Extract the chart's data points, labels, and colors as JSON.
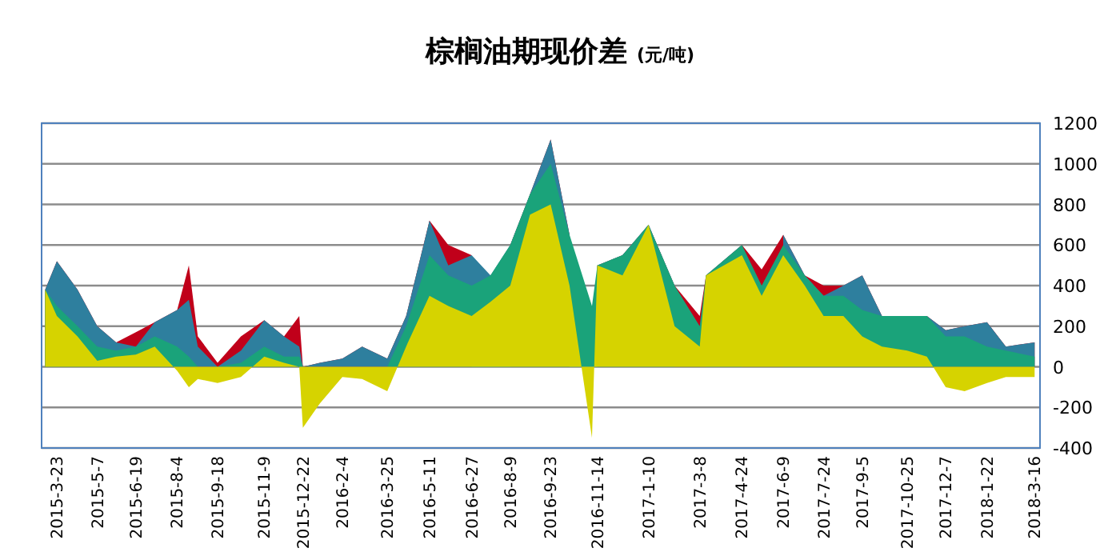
{
  "chart_data": {
    "type": "area",
    "title": "棕榈油期现价差",
    "subtitle": "(元/吨)",
    "x": [
      "2015-03-10",
      "2015-03-23",
      "2015-04-15",
      "2015-05-07",
      "2015-05-28",
      "2015-06-19",
      "2015-07-10",
      "2015-08-04",
      "2015-08-17",
      "2015-08-27",
      "2015-09-18",
      "2015-10-14",
      "2015-11-09",
      "2015-12-01",
      "2015-12-18",
      "2015-12-22",
      "2016-01-10",
      "2016-02-04",
      "2016-02-26",
      "2016-03-25",
      "2016-04-15",
      "2016-05-11",
      "2016-06-01",
      "2016-06-27",
      "2016-07-18",
      "2016-08-09",
      "2016-08-31",
      "2016-09-23",
      "2016-10-14",
      "2016-11-08",
      "2016-11-14",
      "2016-12-12",
      "2017-01-10",
      "2017-02-08",
      "2017-03-08",
      "2017-03-15",
      "2017-04-24",
      "2017-05-16",
      "2017-06-09",
      "2017-07-03",
      "2017-07-24",
      "2017-08-15",
      "2017-09-05",
      "2017-09-27",
      "2017-10-25",
      "2017-11-16",
      "2017-12-07",
      "2017-12-28",
      "2018-01-22",
      "2018-02-12",
      "2018-03-16"
    ],
    "series": [
      {
        "color": "#c0001a",
        "values": [
          380,
          520,
          380,
          200,
          120,
          170,
          220,
          280,
          500,
          150,
          20,
          150,
          230,
          150,
          250,
          0,
          20,
          40,
          100,
          40,
          250,
          720,
          600,
          550,
          null,
          600,
          850,
          1120,
          650,
          null,
          500,
          550,
          700,
          400,
          250,
          450,
          600,
          480,
          650,
          450,
          400,
          400,
          450,
          250,
          250,
          250,
          180,
          200,
          220,
          100,
          120
        ]
      },
      {
        "color": "#2e7f9e",
        "values": [
          380,
          520,
          380,
          200,
          120,
          100,
          220,
          280,
          330,
          100,
          0,
          80,
          230,
          150,
          100,
          0,
          20,
          40,
          100,
          40,
          250,
          720,
          500,
          550,
          450,
          600,
          850,
          1120,
          650,
          null,
          500,
          550,
          700,
          400,
          null,
          450,
          600,
          null,
          650,
          450,
          350,
          400,
          450,
          250,
          250,
          250,
          180,
          200,
          220,
          100,
          120
        ]
      },
      {
        "color": "#1aa37a",
        "values": [
          380,
          300,
          200,
          100,
          80,
          100,
          150,
          100,
          50,
          0,
          0,
          20,
          100,
          50,
          50,
          0,
          0,
          0,
          0,
          0,
          200,
          550,
          450,
          400,
          450,
          600,
          850,
          1000,
          650,
          300,
          500,
          550,
          700,
          400,
          200,
          450,
          600,
          400,
          600,
          450,
          350,
          350,
          280,
          250,
          250,
          250,
          150,
          150,
          100,
          80,
          50
        ]
      },
      {
        "color": "#d6d300",
        "values": [
          380,
          250,
          150,
          30,
          50,
          60,
          100,
          -20,
          -100,
          -60,
          -80,
          -50,
          50,
          20,
          0,
          -300,
          -180,
          -50,
          -60,
          -120,
          100,
          350,
          300,
          250,
          320,
          400,
          750,
          800,
          400,
          -350,
          500,
          450,
          700,
          200,
          100,
          450,
          550,
          350,
          550,
          400,
          250,
          250,
          150,
          100,
          80,
          50,
          -100,
          -120,
          -80,
          -50,
          -50
        ]
      }
    ],
    "xlim": [
      "2015-03-06",
      "2018-03-22"
    ],
    "xticks": [
      {
        "value": "2015-03-23",
        "label": "2015-3-23"
      },
      {
        "value": "2015-05-07",
        "label": "2015-5-7"
      },
      {
        "value": "2015-06-19",
        "label": "2015-6-19"
      },
      {
        "value": "2015-08-04",
        "label": "2015-8-4"
      },
      {
        "value": "2015-09-18",
        "label": "2015-9-18"
      },
      {
        "value": "2015-11-09",
        "label": "2015-11-9"
      },
      {
        "value": "2015-12-22",
        "label": "2015-12-22"
      },
      {
        "value": "2016-02-04",
        "label": "2016-2-4"
      },
      {
        "value": "2016-03-25",
        "label": "2016-3-25"
      },
      {
        "value": "2016-05-11",
        "label": "2016-5-11"
      },
      {
        "value": "2016-06-27",
        "label": "2016-6-27"
      },
      {
        "value": "2016-08-09",
        "label": "2016-8-9"
      },
      {
        "value": "2016-09-23",
        "label": "2016-9-23"
      },
      {
        "value": "2016-11-14",
        "label": "2016-11-14"
      },
      {
        "value": "2017-01-10",
        "label": "2017-1-10"
      },
      {
        "value": "2017-03-08",
        "label": "2017-3-8"
      },
      {
        "value": "2017-04-24",
        "label": "2017-4-24"
      },
      {
        "value": "2017-06-09",
        "label": "2017-6-9"
      },
      {
        "value": "2017-07-24",
        "label": "2017-7-24"
      },
      {
        "value": "2017-09-05",
        "label": "2017-9-5"
      },
      {
        "value": "2017-10-25",
        "label": "2017-10-25"
      },
      {
        "value": "2017-12-07",
        "label": "2017-12-7"
      },
      {
        "value": "2018-01-22",
        "label": "2018-1-22"
      },
      {
        "value": "2018-03-16",
        "label": "2018-3-16"
      }
    ],
    "ylim": [
      -400,
      1200
    ],
    "yticks": [
      -400,
      -200,
      0,
      200,
      400,
      600,
      800,
      1000,
      1200
    ],
    "grid": "y"
  }
}
